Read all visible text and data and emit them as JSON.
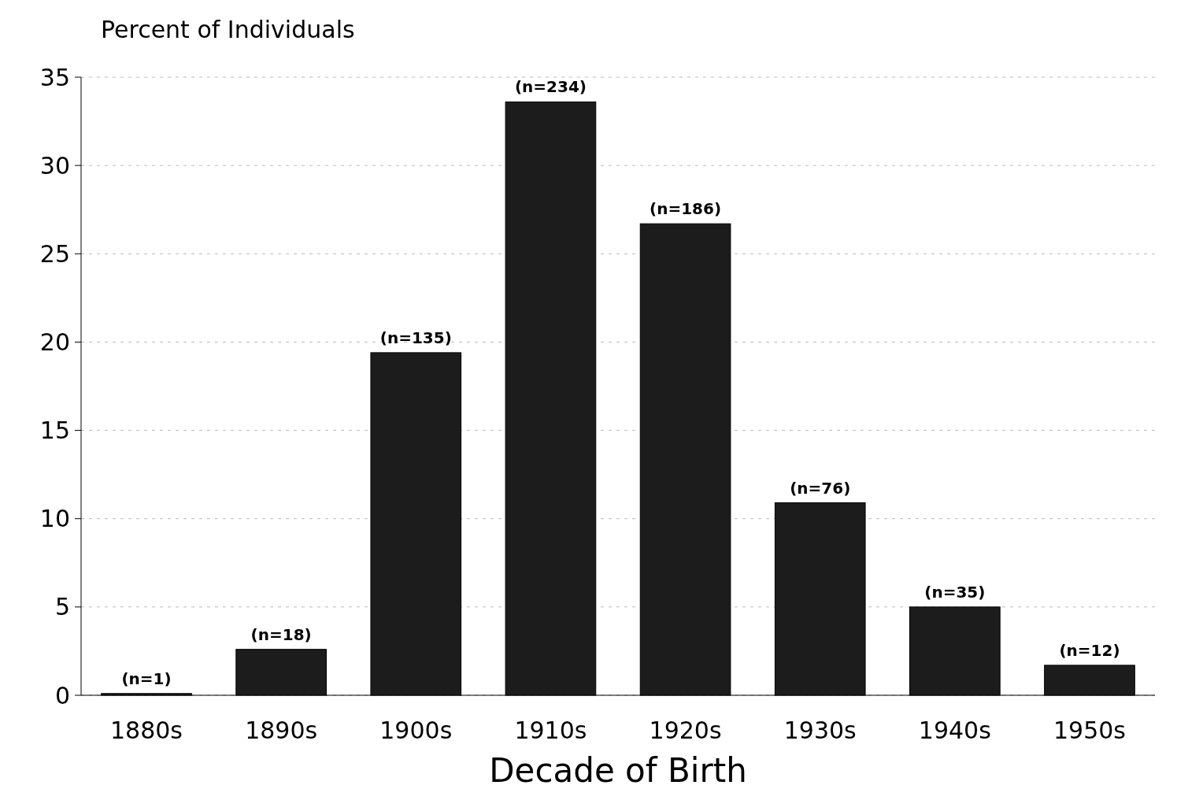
{
  "chart_data": {
    "type": "bar",
    "ylabel": "Percent of Individuals",
    "xlabel": "Decade of Birth",
    "categories": [
      "1880s",
      "1890s",
      "1900s",
      "1910s",
      "1920s",
      "1930s",
      "1940s",
      "1950s"
    ],
    "values": [
      0.1,
      2.6,
      19.4,
      33.6,
      26.7,
      10.9,
      5.0,
      1.7
    ],
    "annotations": [
      {
        "text": "(n=1)",
        "x": "1880s",
        "y": 0.1
      },
      {
        "text": "(n=18)",
        "x": "1890s",
        "y": 2.6
      },
      {
        "text": "(n=135)",
        "x": "1900s",
        "y": 19.4
      },
      {
        "text": "(n=234)",
        "x": "1910s",
        "y": 33.6
      },
      {
        "text": "(n=186)",
        "x": "1920s",
        "y": 26.7
      },
      {
        "text": "(n=76)",
        "x": "1930s",
        "y": 10.9
      },
      {
        "text": "(n=35)",
        "x": "1940s",
        "y": 5.0
      },
      {
        "text": "(n=12)",
        "x": "1950s",
        "y": 1.7
      }
    ],
    "color": "#1c1c1c",
    "ylim": [
      0,
      35
    ],
    "yticks": [
      0,
      5,
      10,
      15,
      20,
      25,
      30,
      35
    ],
    "grid": "y"
  }
}
